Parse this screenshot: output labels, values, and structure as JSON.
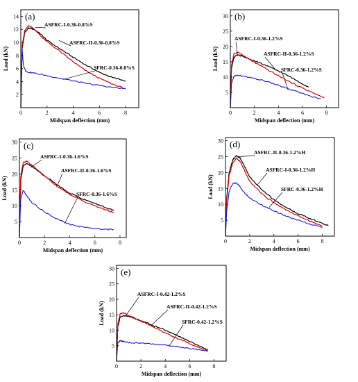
{
  "figure": {
    "caption": ""
  },
  "chart_data": [
    {
      "type": "line",
      "panel_label": "(a)",
      "xlabel": "Midspan deflection (mm)",
      "ylabel": "Load (kN)",
      "xlim": [
        0,
        9
      ],
      "ylim": [
        0,
        15
      ],
      "xticks": [
        0,
        2,
        4,
        6,
        8
      ],
      "yticks": [
        2,
        4,
        6,
        8,
        10,
        12,
        14
      ],
      "series": [
        {
          "name": "ASFRC-I-0.36-0.8%S",
          "color": "#000000",
          "x": [
            0,
            0.1,
            0.3,
            0.6,
            1.0,
            1.5,
            2.0,
            3.0,
            4.0,
            5.0,
            6.0,
            7.0,
            8.0
          ],
          "y": [
            0,
            9,
            11.5,
            12.2,
            12.0,
            11.3,
            10.3,
            9.0,
            7.7,
            6.5,
            5.4,
            4.6,
            4.1
          ]
        },
        {
          "name": "ASFRC-II-0.36-0.8%S",
          "color": "#e00000",
          "x": [
            0,
            0.1,
            0.3,
            0.6,
            1.0,
            1.5,
            2.0,
            3.0,
            4.0,
            5.0,
            6.0,
            7.0,
            8.0
          ],
          "y": [
            0,
            9.5,
            11.8,
            12.6,
            12.1,
            11.0,
            10.1,
            8.6,
            7.0,
            5.6,
            4.5,
            3.6,
            2.9
          ]
        },
        {
          "name": "SFRC-0.36-0.8%S",
          "color": "#1a1acc",
          "x": [
            0,
            0.1,
            0.2,
            0.4,
            1.0,
            2.0,
            3.0,
            4.0,
            5.0,
            6.0,
            7.0,
            8.0
          ],
          "y": [
            0,
            9,
            6.5,
            5.5,
            5.3,
            4.9,
            4.5,
            4.1,
            3.7,
            3.4,
            3.1,
            2.9
          ]
        }
      ],
      "annotations": [
        "ASFRC-I-0.36-0.8%S",
        "ASFRC-II-0.36-0.8%S",
        "SFRC-0.36-0.8%S"
      ]
    },
    {
      "type": "line",
      "panel_label": "(b)",
      "xlabel": "Midspan deflection (mm)",
      "ylabel": "Load (kN)",
      "xlim": [
        0,
        9
      ],
      "ylim": [
        0,
        32
      ],
      "xticks": [
        0,
        2,
        4,
        6,
        8
      ],
      "yticks": [
        5,
        10,
        15,
        20,
        25,
        30
      ],
      "series": [
        {
          "name": "ASFRC-I-0.36-1.2%S",
          "color": "#000000",
          "x": [
            0,
            0.1,
            0.3,
            0.6,
            1.0,
            2.0,
            3.0,
            4.0,
            5.0,
            6.0,
            6.5
          ],
          "y": [
            0,
            13,
            16.5,
            17.2,
            16.8,
            15.3,
            13.7,
            12.0,
            10.0,
            7.8,
            6.7
          ]
        },
        {
          "name": "ASFRC-II-0.36-1.2%S",
          "color": "#e00000",
          "x": [
            0,
            0.1,
            0.3,
            0.6,
            1.0,
            2.0,
            3.0,
            4.0,
            5.0,
            6.0,
            7.0,
            7.8
          ],
          "y": [
            0,
            14,
            17.5,
            18.2,
            17.2,
            14.8,
            12.6,
            10.4,
            8.3,
            6.4,
            4.6,
            3.2
          ]
        },
        {
          "name": "SFRC-0.36-1.2%S",
          "color": "#1a1acc",
          "x": [
            0,
            0.1,
            0.3,
            0.6,
            1.0,
            2.0,
            3.0,
            4.0,
            5.0,
            6.0,
            7.0,
            7.5
          ],
          "y": [
            0,
            8,
            10.2,
            10.6,
            10.3,
            9.5,
            8.6,
            7.3,
            5.9,
            4.6,
            3.4,
            2.8
          ]
        }
      ],
      "annotations": [
        "ASFRC-I-0.36-1.2%S",
        "ASFRC-II-0.36-1.2%S",
        "SFRC-0.36-1.2%S"
      ]
    },
    {
      "type": "line",
      "panel_label": "(c)",
      "xlabel": "Midspan deflection (mm)",
      "ylabel": "Load (kN)",
      "xlim": [
        0,
        8.5
      ],
      "ylim": [
        0,
        31
      ],
      "xticks": [
        0,
        2,
        4,
        6,
        8
      ],
      "yticks": [
        5,
        10,
        15,
        20,
        25,
        30
      ],
      "series": [
        {
          "name": "ASFRC-I-0.36-1.6%S",
          "color": "#000000",
          "x": [
            0,
            0.1,
            0.3,
            0.6,
            1.0,
            2.0,
            3.0,
            4.0,
            5.0,
            6.0,
            7.0,
            7.5
          ],
          "y": [
            0,
            18,
            22.5,
            23.2,
            22.3,
            19.4,
            16.6,
            14.0,
            12.2,
            10.7,
            9.2,
            8.5
          ]
        },
        {
          "name": "ASFRC-II-0.36-1.6%S",
          "color": "#e00000",
          "x": [
            0,
            0.1,
            0.3,
            0.6,
            1.0,
            2.0,
            3.0,
            4.0,
            5.0,
            6.0,
            7.0,
            7.5
          ],
          "y": [
            0,
            19,
            23.5,
            24.0,
            22.7,
            19.4,
            16.1,
            13.6,
            11.6,
            9.9,
            8.5,
            7.9
          ]
        },
        {
          "name": "SFRC-0.36-1.6%S",
          "color": "#1a1acc",
          "x": [
            0,
            0.1,
            0.3,
            0.6,
            1.0,
            2.0,
            3.0,
            4.0,
            5.0,
            6.0,
            7.0,
            7.5
          ],
          "y": [
            0,
            12,
            14.8,
            13.0,
            11.0,
            8.0,
            5.8,
            4.1,
            3.3,
            2.8,
            2.6,
            2.6
          ]
        }
      ],
      "annotations": [
        "ASFRC-I-0.36-1.6%S",
        "ASFRC-II-0.36-1.6%S",
        "SFRC-0.36-1.6%S"
      ]
    },
    {
      "type": "line",
      "panel_label": "(d)",
      "xlabel": "Midspan deflection (mm)",
      "ylabel": "Load (kN)",
      "xlim": [
        0,
        9
      ],
      "ylim": [
        0,
        31
      ],
      "xticks": [
        0,
        2,
        4,
        6,
        8
      ],
      "yticks": [
        5,
        10,
        15,
        20,
        25,
        30
      ],
      "series": [
        {
          "name": "ASFRC-II-0.36-1.2%H",
          "color": "#000000",
          "x": [
            0,
            0.1,
            0.3,
            0.6,
            0.9,
            1.2,
            1.6,
            2.0,
            3.0,
            4.0,
            5.0,
            6.0,
            7.0,
            8.0,
            8.5
          ],
          "y": [
            0,
            12,
            20,
            24.0,
            25.3,
            24.5,
            21.8,
            18.6,
            14.6,
            11.5,
            9.0,
            7.1,
            5.5,
            4.0,
            3.3
          ]
        },
        {
          "name": "ASFRC-I-0.36-1.2%H",
          "color": "#e00000",
          "x": [
            0,
            0.1,
            0.3,
            0.6,
            0.9,
            1.2,
            1.6,
            2.0,
            3.0,
            4.0,
            5.0,
            6.0,
            7.0,
            8.0
          ],
          "y": [
            0,
            11,
            19,
            23.0,
            24.5,
            23.5,
            20.5,
            17.2,
            13.3,
            10.5,
            8.3,
            6.4,
            4.7,
            3.1
          ]
        },
        {
          "name": "SFRC-0.36-1.2%H",
          "color": "#1a1acc",
          "x": [
            0,
            0.1,
            0.3,
            0.6,
            0.9,
            1.2,
            1.6,
            2.0,
            3.0,
            4.0,
            5.0,
            6.0,
            7.0,
            8.0
          ],
          "y": [
            0,
            8,
            14,
            16.5,
            16.8,
            15.5,
            13.5,
            12.0,
            9.8,
            7.9,
            6.3,
            5.0,
            3.8,
            2.8
          ]
        }
      ],
      "annotations": [
        "ASFRC-II-0.36-1.2%H",
        "ASFRC-I-0.36-1.2%H",
        "SFRC-0.36-1.2%H"
      ]
    },
    {
      "type": "line",
      "panel_label": "(e)",
      "xlabel": "Midspan deflection (mm)",
      "ylabel": "Load (kN)",
      "xlim": [
        0,
        9
      ],
      "ylim": [
        0,
        31
      ],
      "xticks": [
        0,
        2,
        4,
        6,
        8
      ],
      "yticks": [
        5,
        10,
        15,
        20,
        25,
        30
      ],
      "series": [
        {
          "name": "ASFRC-I-0.42-1.2%S",
          "color": "#000000",
          "x": [
            0,
            0.1,
            0.3,
            0.6,
            1.0,
            2.0,
            3.0,
            4.0,
            5.0,
            6.0,
            7.0,
            7.5
          ],
          "y": [
            0,
            11,
            14.3,
            14.8,
            14.4,
            13.2,
            11.6,
            10.0,
            8.2,
            6.4,
            4.6,
            3.6
          ]
        },
        {
          "name": "ASFRC-II-0.42-1.2%S",
          "color": "#e00000",
          "x": [
            0,
            0.1,
            0.3,
            0.6,
            1.0,
            2.0,
            3.0,
            4.0,
            5.0,
            6.0,
            7.0,
            7.5
          ],
          "y": [
            0,
            12,
            15.3,
            15.6,
            14.8,
            13.0,
            11.1,
            9.2,
            7.4,
            5.7,
            4.1,
            3.4
          ]
        },
        {
          "name": "SFRC-0.42-1.2%S",
          "color": "#1a1acc",
          "x": [
            0,
            0.1,
            0.3,
            0.6,
            1.0,
            2.0,
            3.0,
            4.0,
            5.0,
            6.0,
            7.0,
            7.5
          ],
          "y": [
            0,
            6,
            6.6,
            6.3,
            6.0,
            5.8,
            5.6,
            5.2,
            4.7,
            4.1,
            3.6,
            3.3
          ]
        }
      ],
      "annotations": [
        "ASFRC-I-0.42-1.2%S",
        "ASFRC-II-0.42-1.2%S",
        "SFRC-0.42-1.2%S"
      ]
    }
  ]
}
